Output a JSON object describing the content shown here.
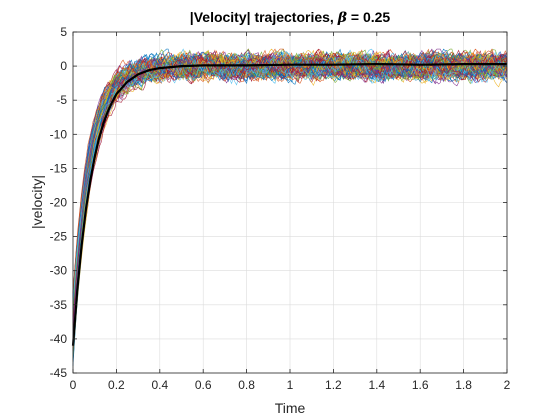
{
  "chart_data": {
    "type": "line",
    "title_prefix": "|Velocity| trajectories, ",
    "title_symbol": "β",
    "title_suffix": " = 0.25",
    "xlabel": "Time",
    "ylabel": "|velocity|",
    "xlim": [
      0,
      2
    ],
    "ylim": [
      -45,
      5
    ],
    "grid": true,
    "x_ticks": [
      "0",
      "0.2",
      "0.4",
      "0.6",
      "0.8",
      "1",
      "1.2",
      "1.4",
      "1.6",
      "1.8",
      "2"
    ],
    "y_ticks": [
      "5",
      "0",
      "-5",
      "-10",
      "-15",
      "-20",
      "-25",
      "-30",
      "-35",
      "-40",
      "-45"
    ],
    "mean_trajectory": {
      "name": "mean",
      "color": "#000000",
      "x": [
        0,
        0.02,
        0.04,
        0.06,
        0.08,
        0.1,
        0.12,
        0.14,
        0.16,
        0.18,
        0.2,
        0.25,
        0.3,
        0.35,
        0.4,
        0.5,
        0.6,
        0.8,
        1.0,
        1.2,
        1.4,
        1.6,
        1.8,
        2.0
      ],
      "y": [
        -41,
        -32.8,
        -26.2,
        -20.9,
        -16.7,
        -13.3,
        -10.6,
        -8.4,
        -6.7,
        -5.3,
        -4.1,
        -2.3,
        -1.2,
        -0.6,
        -0.3,
        0.0,
        0.1,
        0.1,
        0.2,
        0.2,
        0.3,
        0.2,
        0.3,
        0.3
      ]
    },
    "sample_trajectories": {
      "count": 120,
      "start_range": [
        -44,
        -33
      ],
      "decay_time_constant": 0.08,
      "noise_band": [
        -2.5,
        2.5
      ],
      "colors": [
        "#0072BD",
        "#D95319",
        "#EDB120",
        "#7E2F8E",
        "#77AC30",
        "#4DBEEE",
        "#A2142F"
      ]
    }
  }
}
